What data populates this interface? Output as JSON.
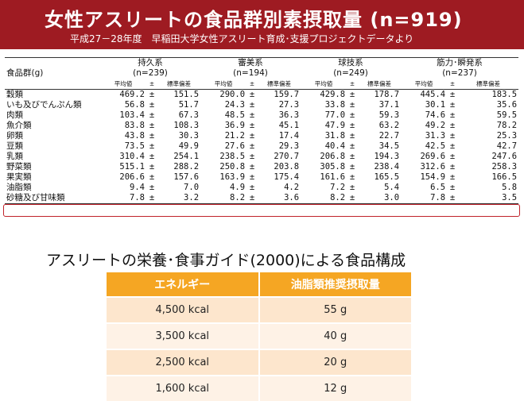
{
  "header": {
    "title": "女性アスリートの食品群別素摂取量 (n=919)",
    "subtitle": "平成27－28年度　早稲田大学女性アスリート育成･支援プロジェクトデータより",
    "bg_color": "#9e1b22"
  },
  "intake_table": {
    "row_header": "食品群(g)",
    "groups": [
      {
        "name": "持久系",
        "n": "(n=239)"
      },
      {
        "name": "審美系",
        "n": "(n=194)"
      },
      {
        "name": "球技系",
        "n": "(n=249)"
      },
      {
        "name": "筋力･瞬発系",
        "n": "(n=237)"
      }
    ],
    "sub_headers": {
      "mean": "平均値",
      "pm": "±",
      "sd": "標準偏差"
    },
    "rows": [
      {
        "food": "穀類",
        "vals": [
          [
            "469.2",
            "151.5"
          ],
          [
            "290.0",
            "159.7"
          ],
          [
            "429.8",
            "178.7"
          ],
          [
            "445.4",
            "183.5"
          ]
        ]
      },
      {
        "food": "いも及びでんぷん類",
        "vals": [
          [
            "56.8",
            "51.7"
          ],
          [
            "24.3",
            "27.3"
          ],
          [
            "33.8",
            "37.1"
          ],
          [
            "30.1",
            "35.6"
          ]
        ]
      },
      {
        "food": "肉類",
        "vals": [
          [
            "103.4",
            "67.3"
          ],
          [
            "48.5",
            "36.3"
          ],
          [
            "77.0",
            "59.3"
          ],
          [
            "74.6",
            "59.5"
          ]
        ]
      },
      {
        "food": "魚介類",
        "vals": [
          [
            "83.8",
            "108.3"
          ],
          [
            "36.9",
            "45.1"
          ],
          [
            "47.9",
            "63.2"
          ],
          [
            "49.2",
            "78.2"
          ]
        ]
      },
      {
        "food": "卵類",
        "vals": [
          [
            "43.8",
            "30.3"
          ],
          [
            "21.2",
            "17.4"
          ],
          [
            "31.8",
            "22.7"
          ],
          [
            "31.3",
            "25.3"
          ]
        ]
      },
      {
        "food": "豆類",
        "vals": [
          [
            "73.5",
            "49.9"
          ],
          [
            "27.6",
            "29.3"
          ],
          [
            "40.4",
            "34.5"
          ],
          [
            "42.5",
            "42.7"
          ]
        ]
      },
      {
        "food": "乳類",
        "vals": [
          [
            "310.4",
            "254.1"
          ],
          [
            "238.5",
            "270.7"
          ],
          [
            "206.8",
            "194.3"
          ],
          [
            "269.6",
            "247.6"
          ]
        ]
      },
      {
        "food": "野菜類",
        "vals": [
          [
            "515.1",
            "288.2"
          ],
          [
            "250.8",
            "203.8"
          ],
          [
            "305.8",
            "238.4"
          ],
          [
            "312.6",
            "258.3"
          ]
        ]
      },
      {
        "food": "果実類",
        "vals": [
          [
            "206.6",
            "157.6"
          ],
          [
            "163.9",
            "175.4"
          ],
          [
            "161.6",
            "165.5"
          ],
          [
            "154.9",
            "166.5"
          ]
        ]
      },
      {
        "food": "油脂類",
        "vals": [
          [
            "9.4",
            "7.0"
          ],
          [
            "4.9",
            "4.2"
          ],
          [
            "7.2",
            "5.4"
          ],
          [
            "6.5",
            "5.8"
          ]
        ]
      },
      {
        "food": "砂糖及び甘味類",
        "vals": [
          [
            "7.8",
            "3.2"
          ],
          [
            "8.2",
            "3.6"
          ],
          [
            "8.2",
            "3.0"
          ],
          [
            "7.8",
            "3.5"
          ]
        ]
      }
    ]
  },
  "guide": {
    "title": "アスリートの栄養･食事ガイド(2000)による食品構成",
    "headers": {
      "energy": "エネルギー",
      "fat": "油脂類推奨摂取量"
    },
    "rows": [
      {
        "energy": "4,500 kcal",
        "fat": "55 g"
      },
      {
        "energy": "3,500 kcal",
        "fat": "40 g"
      },
      {
        "energy": "2,500 kcal",
        "fat": "20 g"
      },
      {
        "energy": "1,600 kcal",
        "fat": "12 g"
      }
    ],
    "header_color": "#f5a623"
  }
}
